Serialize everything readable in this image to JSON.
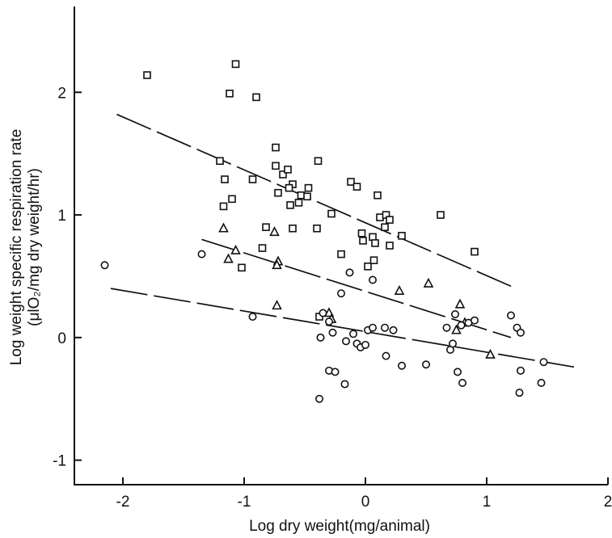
{
  "chart_data": {
    "type": "scatter",
    "title": "",
    "xlabel": "Log dry weight(mg/animal)",
    "ylabel_line1": "Log weight specific respiration rate",
    "ylabel_line2": "(μlO₂/mg dry weight/hr)",
    "xlim": [
      -2.4,
      2.0
    ],
    "ylim": [
      -1.2,
      2.7
    ],
    "x_ticks": [
      -2,
      -1,
      0,
      1,
      2
    ],
    "y_ticks": [
      -1,
      0,
      1,
      2
    ],
    "grid": false,
    "series": [
      {
        "marker": "square",
        "points": [
          [
            -1.8,
            2.14
          ],
          [
            -1.07,
            2.23
          ],
          [
            -1.12,
            1.99
          ],
          [
            -0.9,
            1.96
          ],
          [
            -1.2,
            1.44
          ],
          [
            -1.16,
            1.29
          ],
          [
            -1.1,
            1.13
          ],
          [
            -1.17,
            1.07
          ],
          [
            -0.93,
            1.29
          ],
          [
            -0.74,
            1.55
          ],
          [
            -0.74,
            1.4
          ],
          [
            -0.68,
            1.33
          ],
          [
            -0.64,
            1.37
          ],
          [
            -0.72,
            1.18
          ],
          [
            -0.6,
            1.25
          ],
          [
            -0.63,
            1.22
          ],
          [
            -0.53,
            1.16
          ],
          [
            -0.48,
            1.15
          ],
          [
            -0.47,
            1.22
          ],
          [
            -0.55,
            1.1
          ],
          [
            -0.62,
            1.08
          ],
          [
            -0.39,
            1.44
          ],
          [
            -0.28,
            1.01
          ],
          [
            -0.4,
            0.89
          ],
          [
            -0.6,
            0.89
          ],
          [
            -0.82,
            0.9
          ],
          [
            -0.85,
            0.73
          ],
          [
            -1.02,
            0.57
          ],
          [
            -0.2,
            0.68
          ],
          [
            -0.12,
            1.27
          ],
          [
            -0.07,
            1.23
          ],
          [
            0.1,
            1.16
          ],
          [
            0.12,
            0.98
          ],
          [
            0.17,
            1.0
          ],
          [
            0.2,
            0.96
          ],
          [
            0.16,
            0.9
          ],
          [
            -0.03,
            0.85
          ],
          [
            -0.02,
            0.79
          ],
          [
            0.06,
            0.82
          ],
          [
            0.08,
            0.77
          ],
          [
            0.3,
            0.83
          ],
          [
            0.2,
            0.75
          ],
          [
            0.02,
            0.58
          ],
          [
            0.07,
            0.63
          ],
          [
            0.62,
            1.0
          ],
          [
            0.9,
            0.7
          ],
          [
            -0.38,
            0.17
          ]
        ]
      },
      {
        "marker": "triangle",
        "points": [
          [
            -1.17,
            0.89
          ],
          [
            -1.13,
            0.64
          ],
          [
            -1.07,
            0.71
          ],
          [
            -0.75,
            0.86
          ],
          [
            -0.72,
            0.62
          ],
          [
            -0.73,
            0.59
          ],
          [
            -0.73,
            0.26
          ],
          [
            -0.3,
            0.2
          ],
          [
            -0.28,
            0.15
          ],
          [
            0.28,
            0.38
          ],
          [
            0.52,
            0.44
          ],
          [
            0.78,
            0.27
          ],
          [
            0.82,
            0.12
          ],
          [
            0.75,
            0.06
          ],
          [
            1.03,
            -0.14
          ]
        ]
      },
      {
        "marker": "circle",
        "points": [
          [
            -2.15,
            0.59
          ],
          [
            -1.35,
            0.68
          ],
          [
            -0.93,
            0.17
          ],
          [
            -0.2,
            0.36
          ],
          [
            -0.13,
            0.53
          ],
          [
            0.06,
            0.47
          ],
          [
            -0.35,
            0.2
          ],
          [
            -0.3,
            0.13
          ],
          [
            -0.37,
            0.0
          ],
          [
            -0.27,
            0.04
          ],
          [
            -0.16,
            -0.03
          ],
          [
            -0.1,
            0.03
          ],
          [
            -0.07,
            -0.05
          ],
          [
            -0.04,
            -0.08
          ],
          [
            0.0,
            -0.06
          ],
          [
            0.02,
            0.06
          ],
          [
            0.06,
            0.08
          ],
          [
            0.16,
            0.08
          ],
          [
            0.23,
            0.06
          ],
          [
            0.3,
            -0.23
          ],
          [
            0.17,
            -0.15
          ],
          [
            0.5,
            -0.22
          ],
          [
            -0.3,
            -0.27
          ],
          [
            -0.25,
            -0.28
          ],
          [
            -0.17,
            -0.38
          ],
          [
            -0.38,
            -0.5
          ],
          [
            0.67,
            0.08
          ],
          [
            0.74,
            0.19
          ],
          [
            0.79,
            0.1
          ],
          [
            0.85,
            0.12
          ],
          [
            0.9,
            0.14
          ],
          [
            0.7,
            -0.1
          ],
          [
            0.72,
            -0.05
          ],
          [
            0.76,
            -0.28
          ],
          [
            0.8,
            -0.37
          ],
          [
            1.2,
            0.18
          ],
          [
            1.25,
            0.08
          ],
          [
            1.28,
            0.04
          ],
          [
            1.28,
            -0.27
          ],
          [
            1.27,
            -0.45
          ],
          [
            1.45,
            -0.37
          ],
          [
            1.47,
            -0.2
          ]
        ]
      }
    ],
    "fit_lines": [
      {
        "series": 0,
        "dash": "dashed",
        "x": [
          -2.05,
          1.22
        ],
        "y": [
          1.82,
          0.41
        ]
      },
      {
        "series": 1,
        "dash": "dashed",
        "x": [
          -1.35,
          1.2
        ],
        "y": [
          0.8,
          0.0
        ]
      },
      {
        "series": 2,
        "dash": "dashed",
        "x": [
          -2.1,
          1.72
        ],
        "y": [
          0.4,
          -0.24
        ]
      }
    ]
  }
}
